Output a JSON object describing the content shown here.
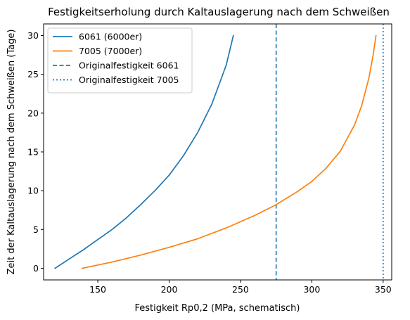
{
  "chart_data": {
    "type": "line",
    "title": "Festigkeitserholung durch Kaltauslagerung nach dem Schweißen",
    "xlabel": "Festigkeit Rp0,2 (MPa, schematisch)",
    "ylabel": "Zeit der Kaltauslagerung nach dem Schweißen (Tage)",
    "xlim": [
      112,
      356
    ],
    "ylim": [
      -1.5,
      31.5
    ],
    "xticks": [
      150,
      200,
      250,
      300,
      350
    ],
    "yticks": [
      0,
      5,
      10,
      15,
      20,
      25,
      30
    ],
    "grid": false,
    "legend_position": "top-left",
    "series": [
      {
        "name": "6061 (6000er)",
        "color": "#1f77b4",
        "style": "solid",
        "x": [
          120,
          130,
          140,
          150,
          160,
          170,
          180,
          190,
          200,
          210,
          220,
          230,
          240,
          245
        ],
        "y": [
          0,
          1.2,
          2.4,
          3.7,
          5.0,
          6.5,
          8.2,
          10.0,
          12.0,
          14.5,
          17.5,
          21.2,
          26.2,
          30
        ]
      },
      {
        "name": "7005 (7000er)",
        "color": "#ff7f0e",
        "style": "solid",
        "x": [
          139,
          160,
          180,
          200,
          220,
          240,
          260,
          275,
          290,
          300,
          310,
          320,
          330,
          335,
          340,
          343,
          345
        ],
        "y": [
          0,
          0.8,
          1.7,
          2.7,
          3.8,
          5.2,
          6.8,
          8.2,
          9.9,
          11.2,
          12.9,
          15.1,
          18.5,
          21.0,
          24.5,
          27.5,
          30
        ]
      }
    ],
    "reference_lines": [
      {
        "name": "Originalfestigkeit 6061",
        "x": 275,
        "color": "#1f77b4",
        "style": "dashed"
      },
      {
        "name": "Originalfestigkeit 7005",
        "x": 350,
        "color": "#1f77b4",
        "style": "dotted"
      }
    ]
  }
}
